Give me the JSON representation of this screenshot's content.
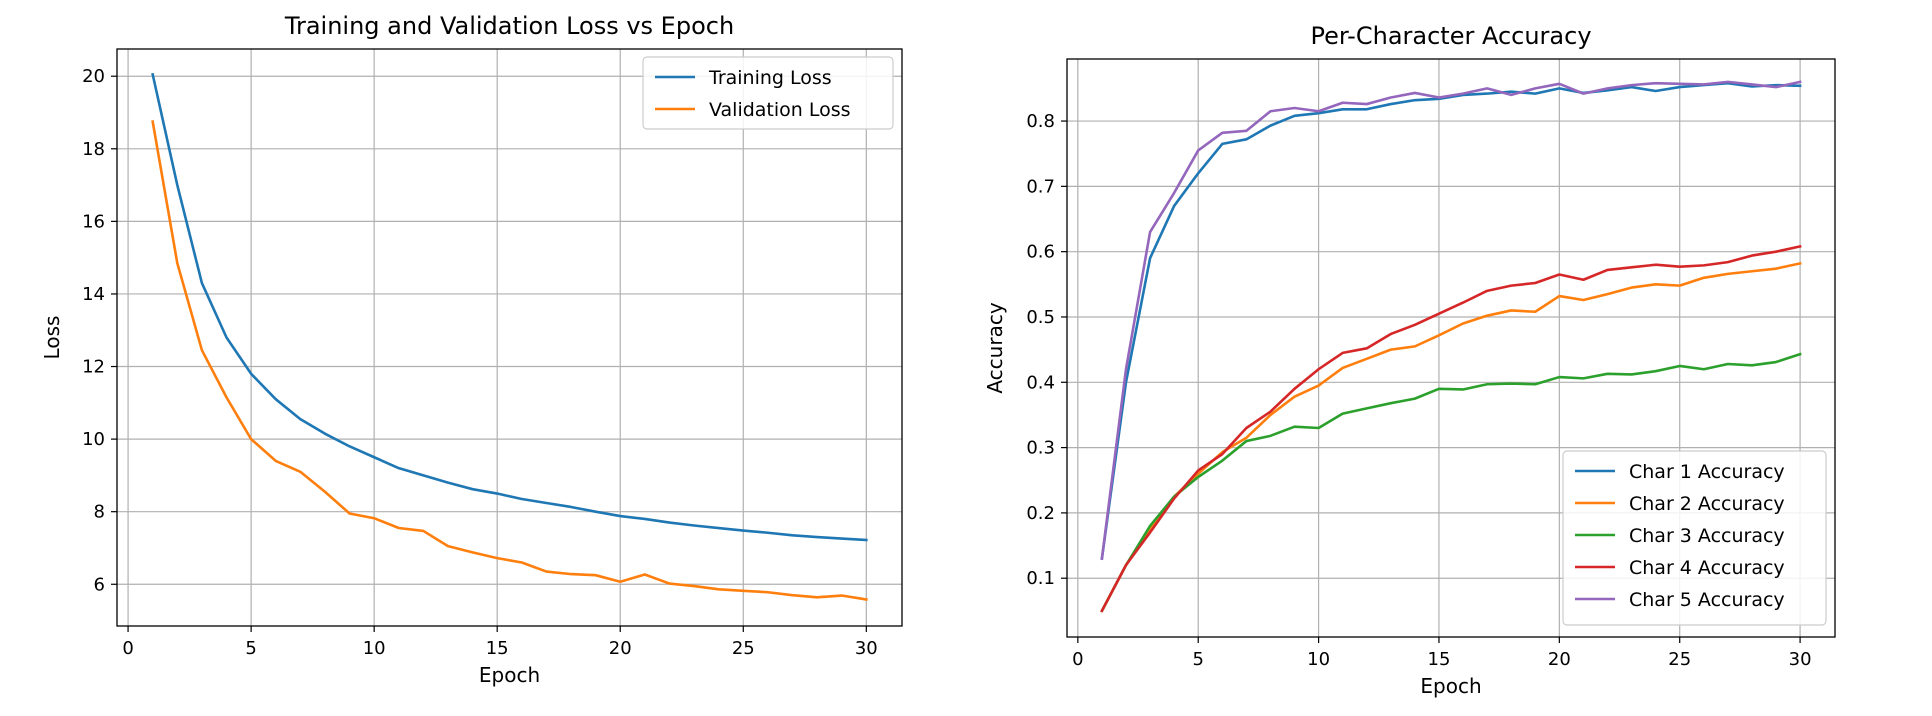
{
  "chart_data": [
    {
      "type": "line",
      "title": "Training and Validation Loss vs Epoch",
      "xlabel": "Epoch",
      "ylabel": "Loss",
      "xlim": [
        -0.45,
        31.45
      ],
      "ylim": [
        4.85,
        20.75
      ],
      "xticks": [
        0,
        5,
        10,
        15,
        20,
        25,
        30
      ],
      "yticks": [
        6,
        8,
        10,
        12,
        14,
        16,
        18,
        20
      ],
      "grid": true,
      "legend": "top-right",
      "x": [
        1,
        2,
        3,
        4,
        5,
        6,
        7,
        8,
        9,
        10,
        11,
        12,
        13,
        14,
        15,
        16,
        17,
        18,
        19,
        20,
        21,
        22,
        23,
        24,
        25,
        26,
        27,
        28,
        29,
        30
      ],
      "series": [
        {
          "name": "Training Loss",
          "color": "#1f77b4",
          "values": [
            20.05,
            17.0,
            14.3,
            12.8,
            11.8,
            11.1,
            10.55,
            10.15,
            9.8,
            9.5,
            9.2,
            9.0,
            8.8,
            8.62,
            8.5,
            8.35,
            8.24,
            8.13,
            8.0,
            7.88,
            7.8,
            7.7,
            7.62,
            7.55,
            7.48,
            7.42,
            7.35,
            7.3,
            7.26,
            7.22
          ]
        },
        {
          "name": "Validation Loss",
          "color": "#ff7f0e",
          "values": [
            18.75,
            14.85,
            12.45,
            11.15,
            10.0,
            9.4,
            9.1,
            8.55,
            7.95,
            7.82,
            7.55,
            7.47,
            7.05,
            6.88,
            6.72,
            6.6,
            6.35,
            6.28,
            6.25,
            6.07,
            6.27,
            6.02,
            5.95,
            5.86,
            5.82,
            5.78,
            5.7,
            5.64,
            5.69,
            5.58
          ]
        }
      ]
    },
    {
      "type": "line",
      "title": "Per-Character Accuracy",
      "xlabel": "Epoch",
      "ylabel": "Accuracy",
      "xlim": [
        -0.45,
        31.45
      ],
      "ylim": [
        0.01,
        0.895
      ],
      "xticks": [
        0,
        5,
        10,
        15,
        20,
        25,
        30
      ],
      "yticks": [
        0.1,
        0.2,
        0.3,
        0.4,
        0.5,
        0.6,
        0.7,
        0.8
      ],
      "grid": true,
      "legend": "bottom-right",
      "x": [
        1,
        2,
        3,
        4,
        5,
        6,
        7,
        8,
        9,
        10,
        11,
        12,
        13,
        14,
        15,
        16,
        17,
        18,
        19,
        20,
        21,
        22,
        23,
        24,
        25,
        26,
        27,
        28,
        29,
        30
      ],
      "series": [
        {
          "name": "Char 1 Accuracy",
          "color": "#1f77b4",
          "values": [
            0.13,
            0.4,
            0.59,
            0.67,
            0.72,
            0.765,
            0.772,
            0.793,
            0.808,
            0.812,
            0.818,
            0.818,
            0.826,
            0.832,
            0.834,
            0.84,
            0.842,
            0.845,
            0.842,
            0.85,
            0.843,
            0.847,
            0.852,
            0.846,
            0.852,
            0.855,
            0.858,
            0.853,
            0.855,
            0.854
          ]
        },
        {
          "name": "Char 2 Accuracy",
          "color": "#ff7f0e",
          "values": [
            0.05,
            0.12,
            0.175,
            0.225,
            0.26,
            0.293,
            0.315,
            0.35,
            0.378,
            0.395,
            0.422,
            0.436,
            0.45,
            0.455,
            0.472,
            0.49,
            0.502,
            0.51,
            0.508,
            0.532,
            0.526,
            0.535,
            0.545,
            0.55,
            0.548,
            0.56,
            0.566,
            0.57,
            0.574,
            0.582
          ]
        },
        {
          "name": "Char 3 Accuracy",
          "color": "#2ca02c",
          "values": [
            0.05,
            0.12,
            0.18,
            0.225,
            0.255,
            0.28,
            0.31,
            0.318,
            0.332,
            0.33,
            0.352,
            0.36,
            0.368,
            0.375,
            0.39,
            0.389,
            0.397,
            0.398,
            0.397,
            0.408,
            0.406,
            0.413,
            0.412,
            0.417,
            0.425,
            0.42,
            0.428,
            0.426,
            0.431,
            0.443
          ]
        },
        {
          "name": "Char 4 Accuracy",
          "color": "#d62728",
          "values": [
            0.05,
            0.12,
            0.17,
            0.222,
            0.265,
            0.29,
            0.33,
            0.355,
            0.39,
            0.42,
            0.445,
            0.452,
            0.474,
            0.488,
            0.505,
            0.522,
            0.54,
            0.548,
            0.552,
            0.565,
            0.557,
            0.572,
            0.576,
            0.58,
            0.577,
            0.579,
            0.584,
            0.594,
            0.6,
            0.608
          ]
        },
        {
          "name": "Char 5 Accuracy",
          "color": "#9467bd",
          "values": [
            0.13,
            0.42,
            0.63,
            0.69,
            0.755,
            0.782,
            0.785,
            0.815,
            0.82,
            0.815,
            0.828,
            0.826,
            0.836,
            0.843,
            0.836,
            0.842,
            0.85,
            0.84,
            0.85,
            0.857,
            0.842,
            0.85,
            0.855,
            0.858,
            0.857,
            0.856,
            0.86,
            0.856,
            0.852,
            0.86
          ]
        }
      ]
    }
  ]
}
